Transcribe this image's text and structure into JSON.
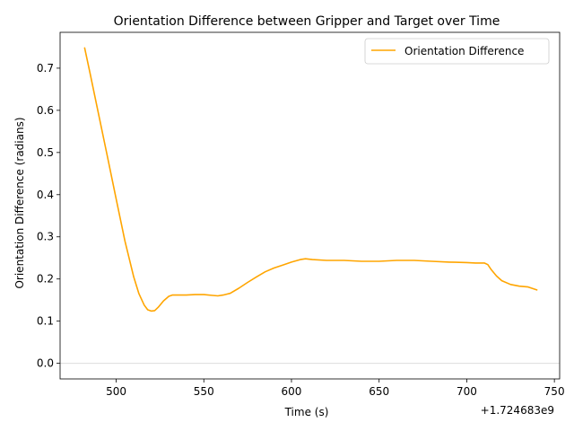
{
  "chart_data": {
    "type": "line",
    "title": "Orientation Difference between Gripper and Target over Time",
    "xlabel": "Time (s)",
    "ylabel": "Orientation Difference (radians)",
    "x_offset_label": "+1.724683e9",
    "xlim": [
      468,
      753
    ],
    "ylim": [
      -0.037,
      0.785
    ],
    "xticks": [
      500,
      550,
      600,
      650,
      700,
      750
    ],
    "xtick_labels": [
      "500",
      "550",
      "600",
      "650",
      "700",
      "750"
    ],
    "yticks": [
      0.0,
      0.1,
      0.2,
      0.3,
      0.4,
      0.5,
      0.6,
      0.7
    ],
    "ytick_labels": [
      "0.0",
      "0.1",
      "0.2",
      "0.3",
      "0.4",
      "0.5",
      "0.6",
      "0.7"
    ],
    "reference_line_y": 0.0,
    "reference_line_color": "#dddddd",
    "grid": false,
    "legend": {
      "position": "top-right",
      "entries": [
        "Orientation Difference"
      ]
    },
    "series": [
      {
        "name": "Orientation Difference",
        "color": "#ffa500",
        "x": [
          482,
          485,
          490,
          495,
          500,
          505,
          510,
          513,
          516,
          518,
          520,
          522,
          524,
          527,
          530,
          532,
          535,
          540,
          545,
          550,
          555,
          558,
          561,
          565,
          570,
          575,
          580,
          585,
          590,
          595,
          600,
          605,
          608,
          612,
          620,
          630,
          640,
          650,
          660,
          670,
          680,
          690,
          700,
          705,
          710,
          712,
          714,
          717,
          720,
          725,
          730,
          735,
          740
        ],
        "y": [
          0.748,
          0.69,
          0.59,
          0.49,
          0.39,
          0.29,
          0.205,
          0.165,
          0.138,
          0.127,
          0.124,
          0.125,
          0.133,
          0.148,
          0.159,
          0.162,
          0.162,
          0.162,
          0.163,
          0.163,
          0.161,
          0.16,
          0.162,
          0.166,
          0.178,
          0.192,
          0.205,
          0.217,
          0.226,
          0.233,
          0.24,
          0.246,
          0.248,
          0.246,
          0.244,
          0.244,
          0.242,
          0.242,
          0.244,
          0.244,
          0.242,
          0.24,
          0.239,
          0.238,
          0.238,
          0.234,
          0.222,
          0.207,
          0.196,
          0.187,
          0.183,
          0.181,
          0.174
        ]
      }
    ]
  }
}
